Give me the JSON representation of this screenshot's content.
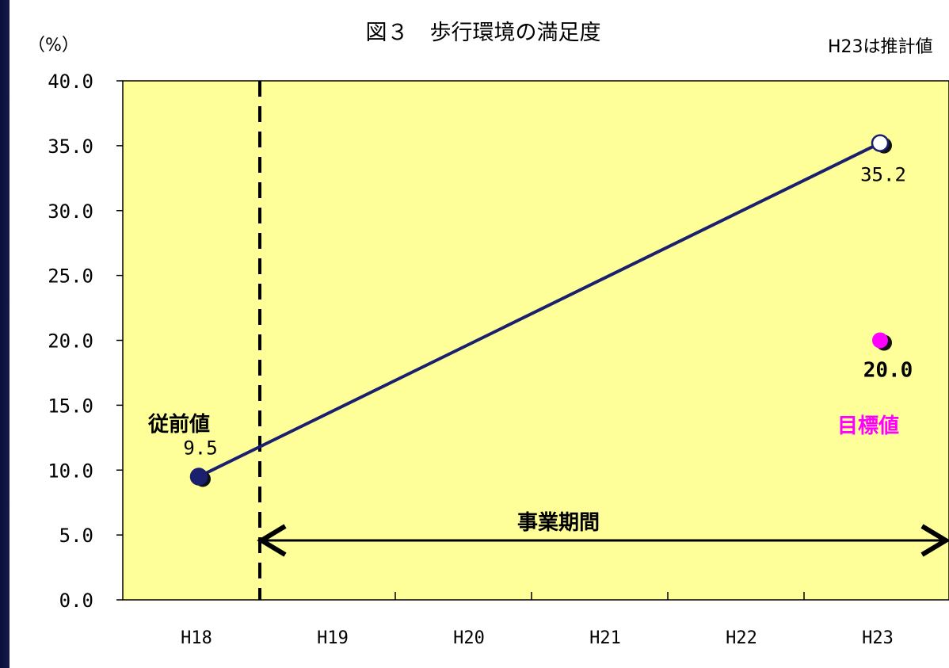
{
  "chart_data": {
    "type": "line",
    "title": "図３　歩行環境の満足度",
    "ylabel": "（%）",
    "note": "H23は推計値",
    "categories": [
      "H18",
      "H19",
      "H20",
      "H21",
      "H22",
      "H23"
    ],
    "ylim": [
      0,
      40
    ],
    "yticks": [
      "0.0",
      "5.0",
      "10.0",
      "15.0",
      "20.0",
      "25.0",
      "30.0",
      "35.0",
      "40.0"
    ],
    "series": [
      {
        "points": [
          {
            "x": "H18",
            "y": 9.5,
            "label": "9.5"
          },
          {
            "x": "H23",
            "y": 35.2,
            "label": "35.2"
          }
        ],
        "color": "#1a1f6e"
      }
    ],
    "target": {
      "x": "H23",
      "y": 20.0,
      "label": "20.0",
      "color": "#ff00ff"
    },
    "annotations": {
      "baseline_label": "従前値",
      "target_label": "目標値",
      "project_period": "事業期間"
    },
    "plot_background": "#ffff99",
    "grid": false
  }
}
